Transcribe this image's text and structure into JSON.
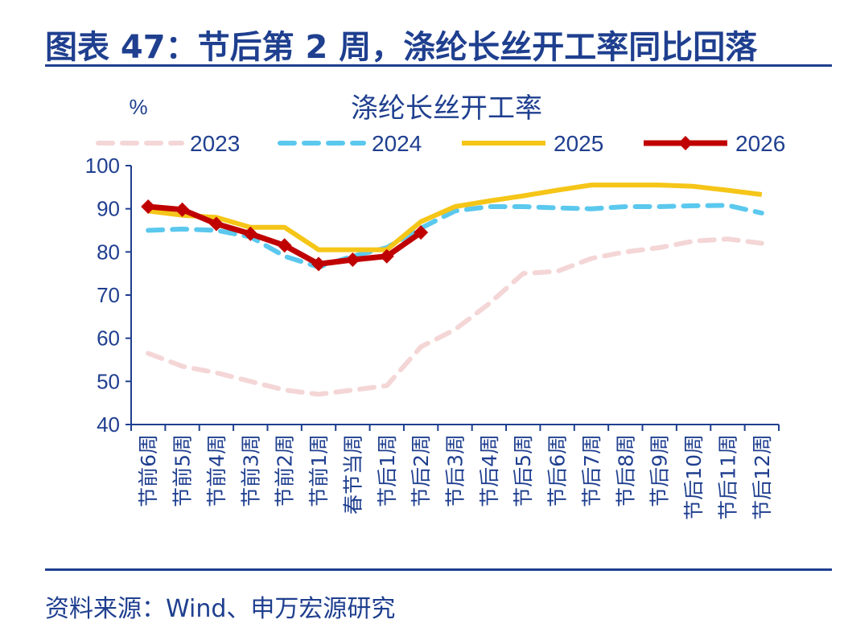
{
  "page": {
    "title": "图表 47：节后第 2 周，涤纶长丝开工率同比回落",
    "source": "资料来源：Wind、申万宏源研究"
  },
  "chart_data": {
    "type": "line",
    "title": "涤纶长丝开工率",
    "ylabel": "%",
    "xlabel": "",
    "ylim": [
      40,
      100
    ],
    "yticks": [
      40,
      50,
      60,
      70,
      80,
      90,
      100
    ],
    "categories": [
      "节前6周",
      "节前5周",
      "节前4周",
      "节前3周",
      "节前2周",
      "节前1周",
      "春节当周",
      "节后1周",
      "节后2周",
      "节后3周",
      "节后4周",
      "节后5周",
      "节后6周",
      "节后7周",
      "节后8周",
      "节后9周",
      "节后10周",
      "节后11周",
      "节后12周"
    ],
    "legend_position": "top",
    "series": [
      {
        "name": "2023",
        "color": "#f4d6d6",
        "style": "dashed",
        "values": [
          56.5,
          53.5,
          52,
          50,
          48,
          47,
          48,
          49,
          58,
          62,
          68,
          75,
          75.5,
          78.5,
          80,
          81,
          82.5,
          83,
          82
        ]
      },
      {
        "name": "2024",
        "color": "#5bc8ee",
        "style": "dashed",
        "values": [
          85,
          85.3,
          85,
          83.5,
          79,
          76.5,
          79,
          81,
          85.5,
          89.5,
          90.5,
          90.5,
          90.2,
          90,
          90.5,
          90.5,
          90.7,
          90.8,
          89
        ]
      },
      {
        "name": "2025",
        "color": "#f5c518",
        "style": "solid",
        "values": [
          89.5,
          88.5,
          88,
          85.7,
          85.7,
          80.5,
          80.5,
          80.5,
          87,
          90.5,
          91.8,
          93,
          94.3,
          95.5,
          95.5,
          95.5,
          95.2,
          94.3,
          93.3
        ]
      },
      {
        "name": "2026",
        "color": "#c00000",
        "style": "solid-marker",
        "values": [
          90.5,
          89.8,
          86.5,
          84.2,
          81.5,
          77.2,
          78.2,
          79,
          84.5,
          null,
          null,
          null,
          null,
          null,
          null,
          null,
          null,
          null,
          null
        ]
      }
    ]
  }
}
